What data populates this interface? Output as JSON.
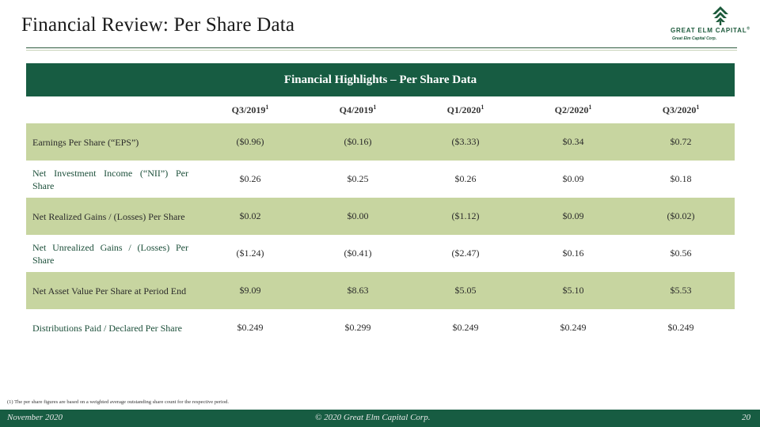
{
  "slide": {
    "title": "Financial Review: Per Share Data"
  },
  "logo": {
    "name": "GREAT ELM CAPITAL",
    "tm": "®",
    "sub": "Great Elm Capital Corp."
  },
  "table": {
    "banner": "Financial Highlights – Per Share Data",
    "columns": [
      {
        "label": "Q3/2019",
        "note": "1"
      },
      {
        "label": "Q4/2019",
        "note": "1"
      },
      {
        "label": "Q1/2020",
        "note": "1"
      },
      {
        "label": "Q2/2020",
        "note": "1"
      },
      {
        "label": "Q3/2020",
        "note": "1"
      }
    ],
    "rows": [
      {
        "label": "Earnings Per Share (“EPS”)",
        "values": [
          "($0.96)",
          "($0.16)",
          "($3.33)",
          "$0.34",
          "$0.72"
        ]
      },
      {
        "label": "Net Investment Income (“NII”) Per Share",
        "values": [
          "$0.26",
          "$0.25",
          "$0.26",
          "$0.09",
          "$0.18"
        ]
      },
      {
        "label": "Net Realized Gains / (Losses) Per Share",
        "values": [
          "$0.02",
          "$0.00",
          "($1.12)",
          "$0.09",
          "($0.02)"
        ]
      },
      {
        "label": "Net Unrealized Gains / (Losses) Per Share",
        "values": [
          "($1.24)",
          "($0.41)",
          "($2.47)",
          "$0.16",
          "$0.56"
        ]
      },
      {
        "label": "Net Asset Value Per Share at Period End",
        "values": [
          "$9.09",
          "$8.63",
          "$5.05",
          "$5.10",
          "$5.53"
        ]
      },
      {
        "label": "Distributions Paid / Declared Per Share",
        "values": [
          "$0.249",
          "$0.299",
          "$0.249",
          "$0.249",
          "$0.249"
        ]
      }
    ]
  },
  "footnote": "(1) The per share figures are based on a weighted average outstanding share count for the respective period.",
  "footer": {
    "date": "November 2020",
    "copyright": "© 2020 Great Elm Capital Corp.",
    "page": "20"
  },
  "colors": {
    "brand_green": "#175c42",
    "row_shade": "#c7d5a0"
  }
}
